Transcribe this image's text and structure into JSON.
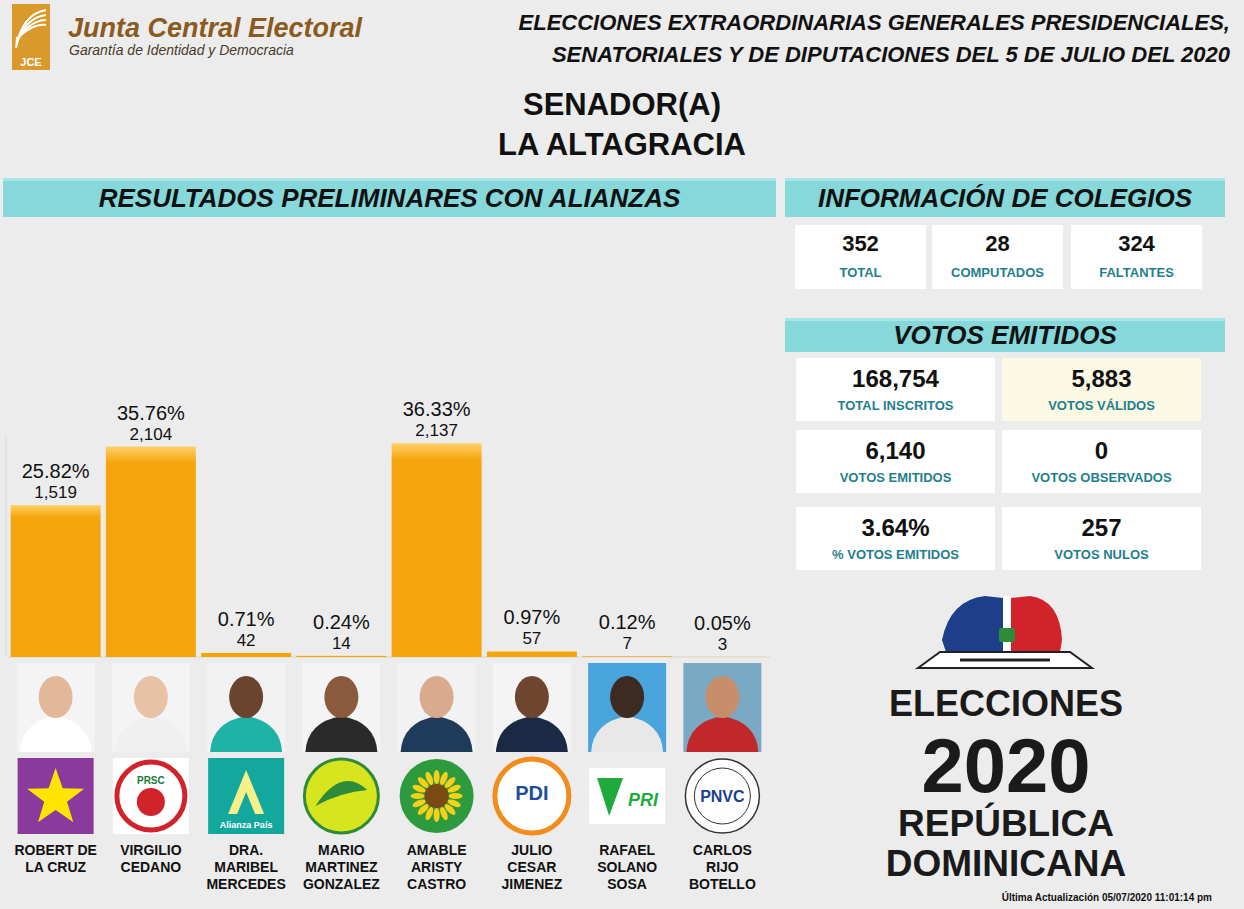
{
  "header": {
    "logo_text": "JCE",
    "org_name": "Junta Central Electoral",
    "org_tagline": "Garantía de Identidad y Democracia",
    "election_title": [
      "ELECCIONES EXTRAORDINARIAS GENERALES PRESIDENCIALES,",
      "SENATORIALES Y DE DIPUTACIONES DEL 5 DE JULIO DEL 2020"
    ],
    "race": "SENADOR(A)",
    "province": "LA ALTAGRACIA"
  },
  "chart_data": {
    "type": "bar",
    "title": "RESULTADOS PRELIMINARES CON ALIANZAS",
    "categories": [
      "ROBERT DE LA CRUZ",
      "VIRGILIO CEDANO",
      "DRA. MARIBEL MERCEDES",
      "MARIO MARTINEZ GONZALEZ",
      "AMABLE ARISTY CASTRO",
      "JULIO CESAR JIMENEZ",
      "RAFAEL SOLANO SOSA",
      "CARLOS RIJO BOTELLO"
    ],
    "values": [
      1519,
      2104,
      42,
      14,
      2137,
      57,
      7,
      3
    ],
    "value_labels": [
      "1,519",
      "2,104",
      "42",
      "14",
      "2,137",
      "57",
      "7",
      "3"
    ],
    "share_labels": [
      "25.82%",
      "35.76%",
      "0.71%",
      "0.24%",
      "36.33%",
      "0.97%",
      "0.12%",
      "0.05%"
    ],
    "logo_texts": [
      null,
      "PRSC",
      "Alianza País",
      null,
      null,
      "PDI",
      "PRI",
      "PNVC"
    ],
    "color": "#f5a50c",
    "ylim": [
      0,
      2200
    ],
    "data_labels": true,
    "tick_labels": false,
    "grid": false
  },
  "colegios": {
    "title": "INFORMACIÓN DE COLEGIOS",
    "items": [
      {
        "value": 352,
        "label": "TOTAL"
      },
      {
        "value": 28,
        "label": "COMPUTADOS"
      },
      {
        "value": 324,
        "label": "FALTANTES"
      }
    ]
  },
  "votos": {
    "title": "VOTOS EMITIDOS",
    "items": [
      {
        "value": 168754,
        "value_label": "168,754",
        "label": "TOTAL INSCRITOS"
      },
      {
        "value": 5883,
        "value_label": "5,883",
        "label": "VOTOS VÁLIDOS"
      },
      {
        "value": 6140,
        "value_label": "6,140",
        "label": "VOTOS EMITIDOS"
      },
      {
        "value": 0,
        "label": "VOTOS OBSERVADOS"
      },
      {
        "value": 3.64,
        "value_label": "3.64%",
        "label": "% VOTOS EMITIDOS"
      },
      {
        "value": 257,
        "label": "VOTOS NULOS"
      }
    ]
  },
  "branding": {
    "line1": "ELECCIONES",
    "year": "2020",
    "line3": "REPÚBLICA",
    "line4": "DOMINICANA"
  },
  "footer": "Última Actualización 05/07/2020 11:01:14 pm"
}
